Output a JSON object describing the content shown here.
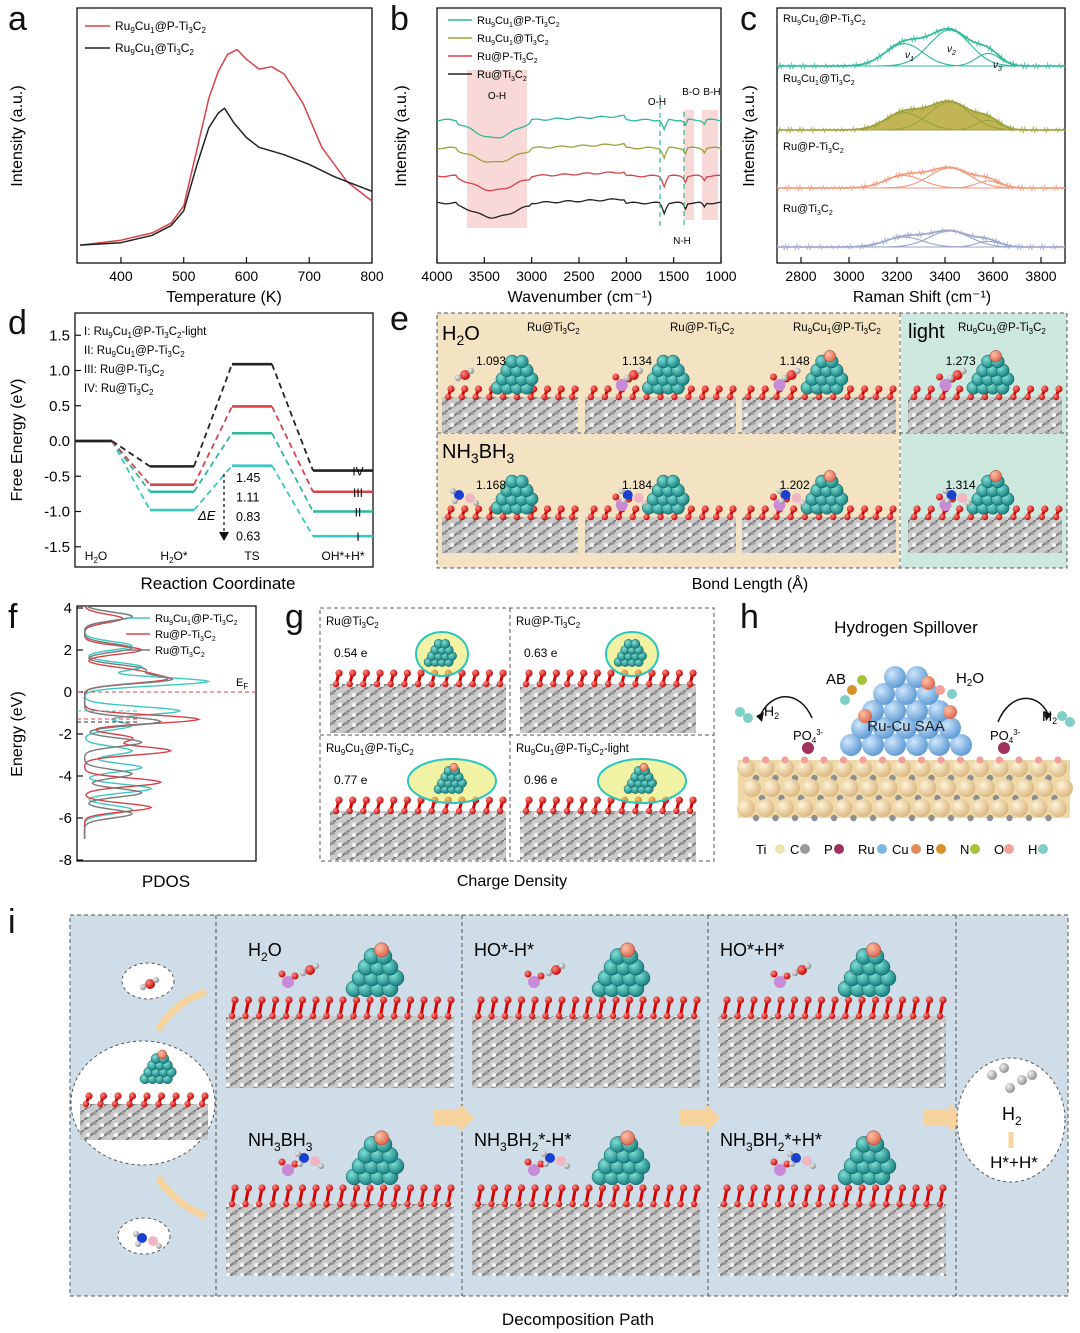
{
  "panel_letters": [
    "a",
    "b",
    "c",
    "d",
    "e",
    "f",
    "g",
    "h",
    "i"
  ],
  "colors": {
    "red": "#d8434a",
    "black": "#222222",
    "teal": "#2fb89a",
    "olive": "#9ba23a",
    "gray": "#7a7a7a",
    "cyan": "#3cc8c2",
    "lavender": "#9aa6cc",
    "salmon": "#ef9a7e",
    "green_fill": "#6fc8a6",
    "olive_fill": "#b7a83a",
    "shade": "#f9d8d8",
    "e_beige": "#f3e3c2",
    "e_mint": "#cde9df",
    "i_bg": "#cfdde8"
  },
  "chart_data": [
    {
      "panel": "a",
      "type": "line",
      "xlabel": "Temperature (K)",
      "ylabel": "Intensity (a.u.)",
      "xlim": [
        330,
        800
      ],
      "xticks": [
        400,
        500,
        600,
        700,
        800
      ],
      "series": [
        {
          "name": "Ru9Cu1@P-Ti3C2",
          "label_sub": [
            "Ru",
            "9",
            "Cu",
            "1",
            "@P-Ti",
            "3",
            "C",
            "2"
          ],
          "color": "#d8434a",
          "x": [
            335,
            400,
            450,
            480,
            500,
            520,
            540,
            555,
            570,
            585,
            600,
            620,
            640,
            660,
            690,
            720,
            760,
            800
          ],
          "y": [
            0.02,
            0.04,
            0.07,
            0.11,
            0.18,
            0.4,
            0.62,
            0.73,
            0.8,
            0.82,
            0.78,
            0.74,
            0.75,
            0.72,
            0.6,
            0.42,
            0.28,
            0.2
          ]
        },
        {
          "name": "Ru9Cu1@Ti3C2",
          "label_sub": [
            "Ru",
            "9",
            "Cu",
            "1",
            "@Ti",
            "3",
            "C",
            "2"
          ],
          "color": "#222222",
          "x": [
            335,
            400,
            450,
            480,
            500,
            520,
            540,
            555,
            565,
            580,
            600,
            620,
            660,
            700,
            740,
            800
          ],
          "y": [
            0.02,
            0.03,
            0.06,
            0.1,
            0.16,
            0.34,
            0.5,
            0.56,
            0.58,
            0.52,
            0.46,
            0.42,
            0.39,
            0.35,
            0.3,
            0.24
          ]
        }
      ]
    },
    {
      "panel": "b",
      "type": "line",
      "xlabel": "Wavenumber (cm⁻¹)",
      "ylabel": "Intensity (a.u.)",
      "xlim": [
        4000,
        1000
      ],
      "xticks": [
        4000,
        3500,
        3000,
        2500,
        2000,
        1500,
        1000
      ],
      "annotations": [
        "O-H",
        "O-H",
        "B-O",
        "B-H",
        "N-H"
      ],
      "series": [
        {
          "name": "Ru9Cu1@P-Ti3C2",
          "label_sub": [
            "Ru",
            "9",
            "Cu",
            "1",
            "@P-Ti",
            "3",
            "C",
            "2"
          ],
          "color": "#2fb89a"
        },
        {
          "name": "Ru9Cu1@Ti3C2",
          "label_sub": [
            "Ru",
            "9",
            "Cu",
            "1",
            "@Ti",
            "3",
            "C",
            "2"
          ],
          "color": "#9ba23a"
        },
        {
          "name": "Ru@P-Ti3C2",
          "label_sub": [
            "Ru@P-Ti",
            "3",
            "C",
            "2"
          ],
          "color": "#d8434a"
        },
        {
          "name": "Ru@Ti3C2",
          "label_sub": [
            "Ru@Ti",
            "3",
            "C",
            "2"
          ],
          "color": "#222222"
        }
      ]
    },
    {
      "panel": "c",
      "type": "line",
      "xlabel": "Raman Shift (cm⁻¹)",
      "ylabel": "Intensity (a.u.)",
      "xlim": [
        2700,
        3900
      ],
      "xticks": [
        2800,
        3000,
        3200,
        3400,
        3600,
        3800
      ],
      "peak_labels": [
        "ν1",
        "ν2",
        "ν3"
      ],
      "series": [
        {
          "name": "Ru9Cu1@P-Ti3C2",
          "label_sub": [
            "Ru",
            "9",
            "Cu",
            "1",
            "@P-Ti",
            "3",
            "C",
            "2"
          ],
          "color": "#2fb89a"
        },
        {
          "name": "Ru9Cu1@Ti3C2",
          "label_sub": [
            "Ru",
            "9",
            "Cu",
            "1",
            "@Ti",
            "3",
            "C",
            "2"
          ],
          "color": "#9ba23a"
        },
        {
          "name": "Ru@P-Ti3C2",
          "label_sub": [
            "Ru@P-Ti",
            "3",
            "C",
            "2"
          ],
          "color": "#ef9a7e"
        },
        {
          "name": "Ru@Ti3C2",
          "label_sub": [
            "Ru@Ti",
            "3",
            "C",
            "2"
          ],
          "color": "#9aa6cc"
        }
      ]
    },
    {
      "panel": "d",
      "type": "line",
      "xlabel": "Reaction Coordinate",
      "ylabel": "Free Energy (eV)",
      "ylim": [
        -1.65,
        1.6
      ],
      "yticks": [
        1.5,
        1.0,
        0.5,
        0.0,
        -0.5,
        -1.0,
        -1.5
      ],
      "ytick_labels": [
        "1.5",
        "1.0",
        "0.5",
        "0.0",
        "-0.5",
        "-1.0",
        "-1.5"
      ],
      "states": [
        "H2O",
        "H2O*",
        "TS",
        "OH*+H*"
      ],
      "state_labels_sub": [
        [
          "H",
          "2",
          "O"
        ],
        [
          "H",
          "2",
          "O*"
        ],
        [
          "TS"
        ],
        [
          "OH*+H*"
        ]
      ],
      "legend": [
        [
          "I: Ru",
          "9",
          "Cu",
          "1",
          "@P-Ti",
          "3",
          "C",
          "2",
          "-light"
        ],
        [
          "II: Ru",
          "9",
          "Cu",
          "1",
          "@P-Ti",
          "3",
          "C",
          "2"
        ],
        [
          "III: Ru@P-Ti",
          "3",
          "C",
          "2"
        ],
        [
          "IV: Ru@Ti",
          "3",
          "C",
          "2"
        ]
      ],
      "series": [
        {
          "name": "I",
          "color": "#3cc8c2",
          "values": [
            0.0,
            -0.98,
            -0.35,
            -1.35
          ]
        },
        {
          "name": "II",
          "color": "#2fb89a",
          "values": [
            0.0,
            -0.72,
            0.11,
            -1.0
          ]
        },
        {
          "name": "III",
          "color": "#d8434a",
          "values": [
            0.0,
            -0.62,
            0.49,
            -0.72
          ]
        },
        {
          "name": "IV",
          "color": "#222222",
          "values": [
            0.0,
            -0.36,
            1.09,
            -0.42
          ]
        }
      ],
      "barrier_values": [
        "1.45",
        "1.11",
        "0.83",
        "0.63"
      ],
      "delta_label": "ΔE"
    },
    {
      "panel": "f",
      "type": "line",
      "xlabel": "PDOS",
      "ylabel": "Energy (eV)",
      "ylim": [
        -8,
        4
      ],
      "yticks": [
        4,
        2,
        0,
        -2,
        -4,
        -6,
        -8
      ],
      "fermi_label": "E",
      "fermi_sub": "F",
      "series": [
        {
          "name": "Ru9Cu1@P-Ti3C2",
          "label_sub": [
            "Ru",
            "9",
            "Cu",
            "1",
            "@P-Ti",
            "3",
            "C",
            "2"
          ],
          "color": "#3cc8c2"
        },
        {
          "name": "Ru@P-Ti3C2",
          "label_sub": [
            "Ru@P-Ti",
            "3",
            "C",
            "2"
          ],
          "color": "#d8434a"
        },
        {
          "name": "Ru@Ti3C2",
          "label_sub": [
            "Ru@Ti",
            "3",
            "C",
            "2"
          ],
          "color": "#7a7a7a"
        }
      ]
    }
  ],
  "panel_e": {
    "xlabel": "Bond Length (Å)",
    "row1_label": [
      "H",
      "2",
      "O"
    ],
    "row2_label": [
      "NH",
      "3",
      "BH",
      "3"
    ],
    "light_label": "light",
    "columns": [
      [
        "Ru@Ti",
        "3",
        "C",
        "2"
      ],
      [
        "Ru@P-Ti",
        "3",
        "C",
        "2"
      ],
      [
        "Ru",
        "9",
        "Cu",
        "1",
        "@P-Ti",
        "3",
        "C",
        "2"
      ],
      [
        "Ru",
        "9",
        "Cu",
        "1",
        "@P-Ti",
        "3",
        "C",
        "2"
      ]
    ],
    "row1_values": [
      "1.093",
      "1.134",
      "1.148",
      "1.273"
    ],
    "row2_values": [
      "1.168",
      "1.184",
      "1.202",
      "1.314"
    ]
  },
  "panel_g": {
    "xlabel": "Charge Density",
    "cells": [
      {
        "title": [
          "Ru@Ti",
          "3",
          "C",
          "2"
        ],
        "value": "0.54 e"
      },
      {
        "title": [
          "Ru@P-Ti",
          "3",
          "C",
          "2"
        ],
        "value": "0.63 e"
      },
      {
        "title": [
          "Ru",
          "9",
          "Cu",
          "1",
          "@P-Ti",
          "3",
          "C",
          "2"
        ],
        "value": "0.77 e"
      },
      {
        "title": [
          "Ru",
          "9",
          "Cu",
          "1",
          "@P-Ti",
          "3",
          "C",
          "2",
          "-light"
        ],
        "value": "0.96 e"
      }
    ]
  },
  "panel_h": {
    "title": "Hydrogen Spillover",
    "ab": "AB",
    "h2o": [
      "H",
      "2",
      "O"
    ],
    "saa": "Ru-Cu SAA",
    "h2_left": [
      "H",
      "2"
    ],
    "h2_right": [
      "H",
      "2"
    ],
    "po": [
      "PO",
      "4",
      "3-"
    ],
    "legend": [
      {
        "label": "Ti",
        "color": "#efe3b0"
      },
      {
        "label": "C",
        "color": "#9a9a9a"
      },
      {
        "label": "P",
        "color": "#a0305e"
      },
      {
        "label": "Ru",
        "color": "#7fb7e3"
      },
      {
        "label": "Cu",
        "color": "#e58a5a"
      },
      {
        "label": "B",
        "color": "#d6922a"
      },
      {
        "label": "N",
        "color": "#a6c43a"
      },
      {
        "label": "O",
        "color": "#f1a09a"
      },
      {
        "label": "H",
        "color": "#7fcfc6"
      }
    ]
  },
  "panel_i": {
    "xlabel": "Decomposition Path",
    "top_labels": [
      [
        "H",
        "2",
        "O"
      ],
      [
        "HO*-H*"
      ],
      [
        "HO*+H*"
      ]
    ],
    "bottom_labels": [
      [
        "NH",
        "3",
        "BH",
        "3"
      ],
      [
        "NH",
        "3",
        "BH",
        "2",
        "*-H*"
      ],
      [
        "NH",
        "3",
        "BH",
        "2",
        "*+H*"
      ]
    ],
    "final_h2": [
      "H",
      "2"
    ],
    "final_hh": "H*+H*"
  }
}
